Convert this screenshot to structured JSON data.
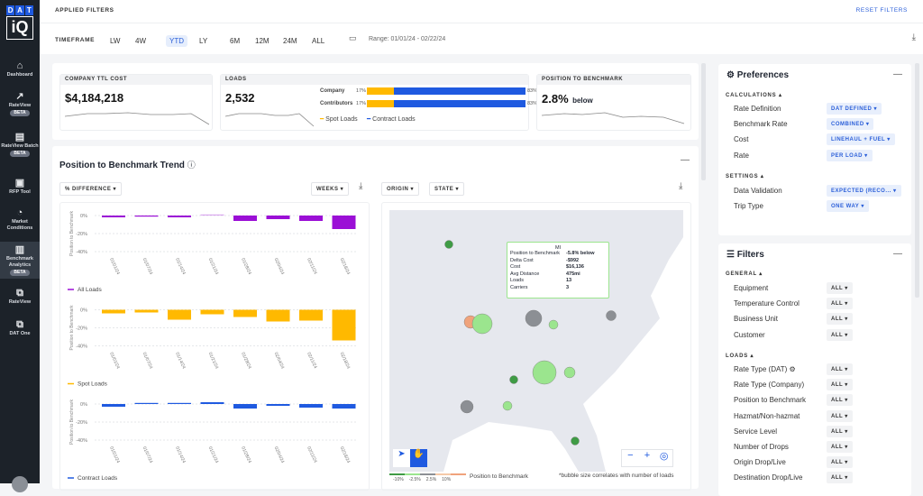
{
  "brand": {
    "logo_top": "DAT",
    "logo_bottom": "iQ"
  },
  "sidebar": {
    "items": [
      {
        "label": "Dashboard",
        "icon": "home-icon"
      },
      {
        "label": "RateView",
        "badge": "BETA",
        "icon": "rateview-icon"
      },
      {
        "label": "RateView Batch",
        "badge": "BETA",
        "icon": "file-icon"
      },
      {
        "label": "RFP Tool",
        "icon": "briefcase-icon"
      },
      {
        "label": "Market Conditions",
        "icon": "gauge-icon"
      },
      {
        "label": "Benchmark Analytics",
        "badge": "BETA",
        "icon": "bar-chart-icon",
        "active": true
      },
      {
        "label": "RateView",
        "icon": "external-link-icon"
      },
      {
        "label": "DAT One",
        "icon": "external-link-icon"
      }
    ]
  },
  "header": {
    "applied_filters": "APPLIED FILTERS",
    "reset": "RESET FILTERS",
    "timeframe_label": "TIMEFRAME",
    "timeframes": [
      "LW",
      "4W",
      "YTD",
      "LY",
      "6M",
      "12M",
      "24M",
      "ALL"
    ],
    "selected": "YTD",
    "range": "Range: 01/01/24 - 02/22/24"
  },
  "kpis": {
    "cost": {
      "title": "COMPANY TTL COST",
      "value": "$4,184,218"
    },
    "loads": {
      "title": "LOADS",
      "value": "2,532",
      "rows": [
        {
          "label": "Company",
          "spot": "17%",
          "contract": "83%",
          "spot_pct": 17
        },
        {
          "label": "Contributors",
          "spot": "17%",
          "contract": "83%",
          "spot_pct": 17
        }
      ],
      "legend_spot": "Spot Loads",
      "legend_contract": "Contract Loads"
    },
    "position": {
      "title": "POSITION TO BENCHMARK",
      "value": "2.8%",
      "suffix": "below"
    }
  },
  "trend": {
    "title": "Position to Benchmark Trend",
    "metric": "% DIFFERENCE",
    "period": "WEEKS",
    "origin": "ORIGIN",
    "state": "STATE"
  },
  "chart_data": [
    {
      "type": "bar",
      "series": [
        {
          "name": "All Loads",
          "values": [
            -2,
            -0.5,
            -2,
            1,
            -6,
            -4,
            -6,
            -15
          ]
        }
      ],
      "categories": [
        "01/01/24",
        "01/07/24",
        "01/14/24",
        "01/21/24",
        "01/28/24",
        "02/04/24",
        "02/11/24",
        "02/18/24"
      ],
      "ylabel": "Position to Benchmark",
      "yticks": [
        "0%",
        "-20%",
        "-40%"
      ],
      "ylim": [
        -45,
        3
      ],
      "color": "#9b0fd6"
    },
    {
      "type": "bar",
      "series": [
        {
          "name": "Spot Loads",
          "values": [
            -4,
            -3,
            -11,
            -5,
            -8,
            -13,
            -12,
            -34
          ]
        }
      ],
      "categories": [
        "01/01/24",
        "01/07/24",
        "01/14/24",
        "01/21/24",
        "01/28/24",
        "02/04/24",
        "02/11/24",
        "02/18/24"
      ],
      "ylabel": "Position to Benchmark",
      "yticks": [
        "0%",
        "-20%",
        "-40%"
      ],
      "ylim": [
        -45,
        3
      ],
      "color": "#ffb900"
    },
    {
      "type": "bar",
      "series": [
        {
          "name": "Contract Loads",
          "values": [
            -3,
            0.5,
            1,
            2,
            -5,
            -2,
            -4,
            -5
          ]
        }
      ],
      "categories": [
        "01/01/24",
        "01/07/24",
        "01/14/24",
        "01/21/24",
        "01/28/24",
        "02/04/24",
        "02/11/24",
        "02/18/24"
      ],
      "ylabel": "Position to Benchmark",
      "yticks": [
        "0%",
        "-20%",
        "-40%"
      ],
      "ylim": [
        -45,
        3
      ],
      "color": "#1f5ae0"
    }
  ],
  "map": {
    "tooltip": {
      "state": "MI",
      "rows": [
        [
          "Position to Benchmark",
          "-5.8% below"
        ],
        [
          "Delta Cost",
          "-$992"
        ],
        [
          "Cost",
          "$16,136"
        ],
        [
          "Avg Distance",
          "475mi"
        ],
        [
          "Loads",
          "13"
        ],
        [
          "Carriers",
          "3"
        ]
      ]
    },
    "legend_ticks": [
      "-10%",
      "-2.5%",
      "2.5%",
      "10%"
    ],
    "legend_title": "Position to Benchmark",
    "note": "*bubble size correlates with number of loads",
    "colors": {
      "strong_below": "#3f9b45",
      "below": "#9be58e",
      "neutral": "#8c8f94",
      "above": "#f5c9a8",
      "strong_above": "#f0a37c"
    }
  },
  "preferences": {
    "title": "Preferences",
    "calculations": "CALCULATIONS",
    "settings": "SETTINGS",
    "calc_rows": [
      [
        "Rate Definition",
        "DAT DEFINED"
      ],
      [
        "Benchmark Rate",
        "COMBINED"
      ],
      [
        "Cost",
        "LINEHAUL + FUEL"
      ],
      [
        "Rate",
        "PER LOAD"
      ]
    ],
    "settings_rows": [
      [
        "Data Validation",
        "EXPECTED (RECO..."
      ],
      [
        "Trip Type",
        "ONE WAY"
      ]
    ]
  },
  "filters": {
    "title": "Filters",
    "general": "GENERAL",
    "loads": "LOADS",
    "general_rows": [
      [
        "Equipment",
        "ALL"
      ],
      [
        "Temperature Control",
        "ALL"
      ],
      [
        "Business Unit",
        "ALL"
      ],
      [
        "Customer",
        "ALL"
      ]
    ],
    "loads_rows": [
      [
        "Rate Type (DAT)",
        "ALL"
      ],
      [
        "Rate Type (Company)",
        "ALL"
      ],
      [
        "Position to Benchmark",
        "ALL"
      ],
      [
        "Hazmat/Non-hazmat",
        "ALL"
      ],
      [
        "Service Level",
        "ALL"
      ],
      [
        "Number of Drops",
        "ALL"
      ],
      [
        "Origin Drop/Live",
        "ALL"
      ],
      [
        "Destination Drop/Live",
        "ALL"
      ]
    ]
  }
}
